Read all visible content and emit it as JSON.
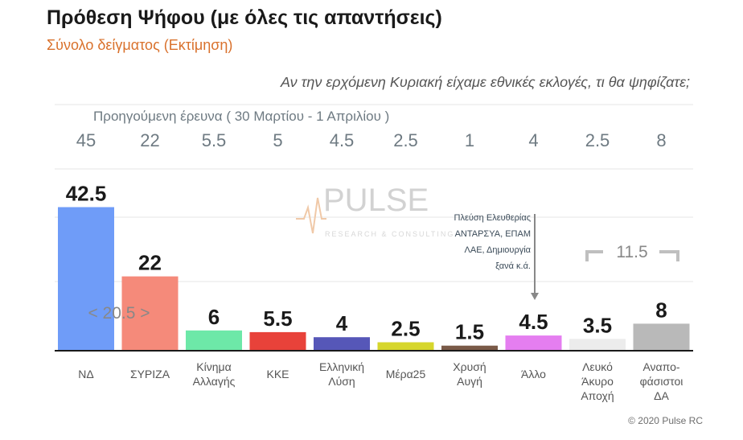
{
  "title": "Πρόθεση Ψήφου (με όλες τις απαντήσεις)",
  "subtitle": "Σύνολο δείγματος   (Εκτίμηση)",
  "question": "Αν την ερχόμενη Κυριακή είχαμε εθνικές εκλογές, τι θα ψηφίζατε;",
  "previous_survey_label": "Προηγούμενη έρευνα   ( 30 Μαρτίου - 1 Απριλίου )",
  "copyright": "© 2020 Pulse RC",
  "watermark": {
    "name": "PULSE",
    "tagline": "RESEARCH & CONSULTING"
  },
  "annotations": {
    "gap": "< 20.5 >",
    "other_bracket": "11.5",
    "other_note": [
      "Πλεύση Ελευθερίας",
      "ΑΝΤΑΡΣΥΑ, ΕΠΑΜ",
      "ΛΑΕ, Δημιουργία",
      "ξανά   κ.ά."
    ]
  },
  "chart_data": {
    "type": "bar",
    "title": "Πρόθεση Ψήφου (με όλες τις απαντήσεις)",
    "xlabel": "",
    "ylabel": "",
    "ylim": [
      0,
      50
    ],
    "grid": true,
    "categories": [
      [
        "ΝΔ"
      ],
      [
        "ΣΥΡΙΖΑ"
      ],
      [
        "Κίνημα",
        "Αλλαγής"
      ],
      [
        "ΚΚΕ"
      ],
      [
        "Ελληνική",
        "Λύση"
      ],
      [
        "Μέρα25"
      ],
      [
        "Χρυσή",
        "Αυγή"
      ],
      [
        "Άλλο"
      ],
      [
        "Λευκό",
        "Άκυρο",
        "Αποχή"
      ],
      [
        "Αναπο-",
        "φάσιστοι",
        "ΔΑ"
      ]
    ],
    "series": [
      {
        "name": "",
        "values": [
          42.5,
          22,
          6,
          5.5,
          4,
          2.5,
          1.5,
          4.5,
          3.5,
          8
        ]
      },
      {
        "name": "Προηγούμενη έρευνα",
        "values": [
          45,
          22,
          5.5,
          5,
          4.5,
          2.5,
          1,
          4,
          2.5,
          8
        ]
      }
    ],
    "colors": [
      "#6f9cf8",
      "#f58a7a",
      "#6de8a8",
      "#e8423a",
      "#5657b8",
      "#d6d62c",
      "#7a5a48",
      "#e57ef0",
      "#ececec",
      "#b9b9b9"
    ]
  }
}
